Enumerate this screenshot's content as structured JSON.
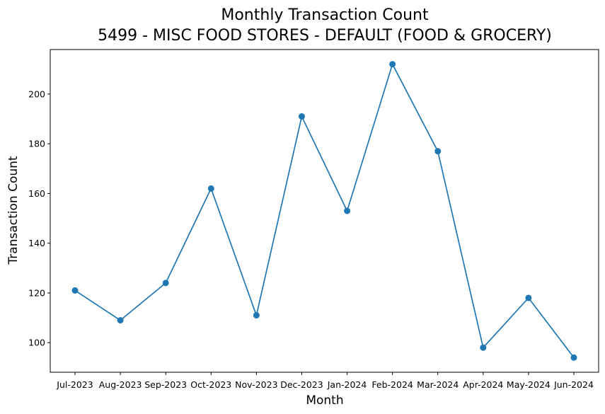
{
  "chart_data": {
    "type": "line",
    "title": "Monthly Transaction Count",
    "subtitle": "5499 - MISC FOOD STORES - DEFAULT (FOOD & GROCERY)",
    "xlabel": "Month",
    "ylabel": "Transaction Count",
    "categories": [
      "Jul-2023",
      "Aug-2023",
      "Sep-2023",
      "Oct-2023",
      "Nov-2023",
      "Dec-2023",
      "Jan-2024",
      "Feb-2024",
      "Mar-2024",
      "Apr-2024",
      "May-2024",
      "Jun-2024"
    ],
    "series": [
      {
        "values": [
          121,
          109,
          124,
          162,
          111,
          191,
          153,
          212,
          177,
          98,
          118,
          94
        ],
        "color": "#1f77b4"
      }
    ],
    "yticks": [
      100,
      120,
      140,
      160,
      180,
      200
    ],
    "ylim": [
      88.1,
      217.9
    ],
    "grid": false,
    "legend": "none",
    "marker": "circle"
  }
}
